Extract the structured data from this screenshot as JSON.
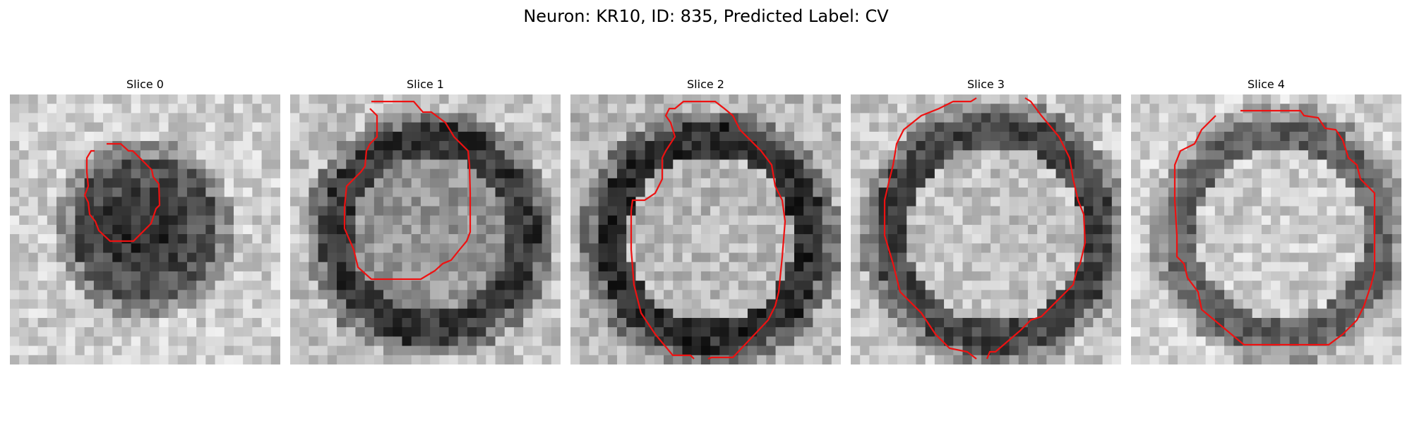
{
  "figure": {
    "title": "Neuron: KR10, ID: 835, Predicted Label: CV"
  },
  "slices": [
    {
      "title": "Slice 0"
    },
    {
      "title": "Slice 1"
    },
    {
      "title": "Slice 2"
    },
    {
      "title": "Slice 3"
    },
    {
      "title": "Slice 4"
    }
  ],
  "colors": {
    "contour": "#ee1111",
    "background": "#ffffff"
  }
}
